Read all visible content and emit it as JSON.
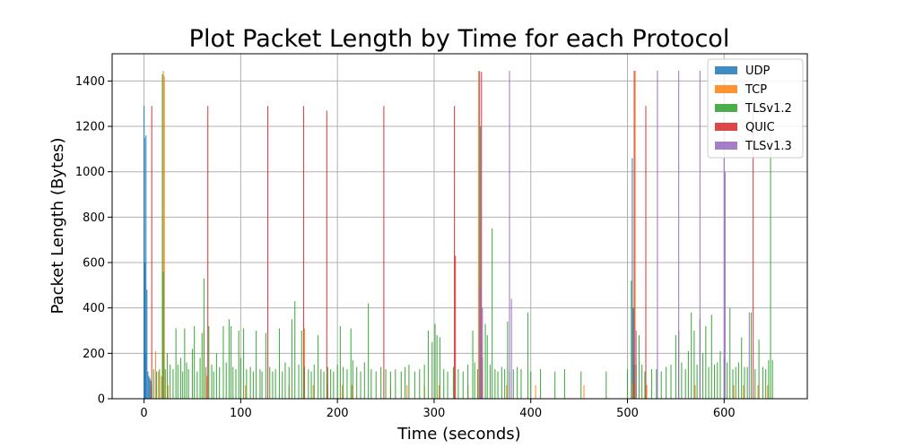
{
  "chart_data": {
    "type": "bar",
    "title": "Plot Packet Length by Time for each Protocol",
    "xlabel": "Time (seconds)",
    "ylabel": "Packet Length (Bytes)",
    "xlim": [
      -33,
      686
    ],
    "ylim": [
      0,
      1520
    ],
    "xticks": [
      0,
      100,
      200,
      300,
      400,
      500,
      600
    ],
    "yticks": [
      0,
      200,
      400,
      600,
      800,
      1000,
      1200,
      1400
    ],
    "grid": true,
    "legend_position": "top-right",
    "series": [
      {
        "name": "UDP",
        "color": "#1f77b4",
        "points": [
          [
            0,
            1290
          ],
          [
            0.5,
            1150
          ],
          [
            1,
            600
          ],
          [
            1.5,
            200
          ],
          [
            2,
            1160
          ],
          [
            3,
            480
          ],
          [
            4,
            120
          ],
          [
            5,
            100
          ],
          [
            6,
            90
          ],
          [
            7,
            80
          ],
          [
            505,
            1060
          ],
          [
            506,
            400
          ],
          [
            507,
            150
          ]
        ]
      },
      {
        "name": "TCP",
        "color": "#ff7f0e",
        "points": [
          [
            8,
            60
          ],
          [
            12,
            210
          ],
          [
            15,
            120
          ],
          [
            18,
            100
          ],
          [
            20,
            1445
          ],
          [
            21,
            1420
          ],
          [
            25,
            60
          ],
          [
            62,
            300
          ],
          [
            65,
            100
          ],
          [
            105,
            60
          ],
          [
            150,
            60
          ],
          [
            166,
            310
          ],
          [
            175,
            60
          ],
          [
            190,
            60
          ],
          [
            205,
            60
          ],
          [
            215,
            60
          ],
          [
            255,
            60
          ],
          [
            272,
            60
          ],
          [
            290,
            60
          ],
          [
            305,
            60
          ],
          [
            335,
            60
          ],
          [
            346,
            1445
          ],
          [
            347,
            1445
          ],
          [
            350,
            120
          ],
          [
            375,
            60
          ],
          [
            405,
            60
          ],
          [
            455,
            60
          ],
          [
            505,
            70
          ],
          [
            508,
            1445
          ],
          [
            520,
            60
          ],
          [
            570,
            60
          ],
          [
            610,
            60
          ],
          [
            620,
            60
          ],
          [
            635,
            60
          ],
          [
            645,
            60
          ]
        ]
      },
      {
        "name": "TLSv1.2",
        "color": "#2ca02c",
        "points": [
          [
            10,
            130
          ],
          [
            13,
            120
          ],
          [
            16,
            130
          ],
          [
            19,
            1430
          ],
          [
            20,
            560
          ],
          [
            22,
            130
          ],
          [
            24,
            200
          ],
          [
            27,
            150
          ],
          [
            30,
            130
          ],
          [
            33,
            310
          ],
          [
            35,
            150
          ],
          [
            38,
            180
          ],
          [
            40,
            120
          ],
          [
            42,
            310
          ],
          [
            44,
            160
          ],
          [
            46,
            130
          ],
          [
            50,
            220
          ],
          [
            52,
            320
          ],
          [
            55,
            120
          ],
          [
            58,
            180
          ],
          [
            60,
            290
          ],
          [
            62,
            530
          ],
          [
            64,
            140
          ],
          [
            67,
            320
          ],
          [
            70,
            150
          ],
          [
            72,
            120
          ],
          [
            75,
            200
          ],
          [
            78,
            140
          ],
          [
            82,
            320
          ],
          [
            85,
            160
          ],
          [
            88,
            350
          ],
          [
            90,
            320
          ],
          [
            92,
            140
          ],
          [
            95,
            130
          ],
          [
            98,
            300
          ],
          [
            100,
            180
          ],
          [
            103,
            310
          ],
          [
            106,
            130
          ],
          [
            110,
            140
          ],
          [
            113,
            120
          ],
          [
            116,
            300
          ],
          [
            120,
            130
          ],
          [
            122,
            120
          ],
          [
            126,
            290
          ],
          [
            130,
            140
          ],
          [
            133,
            120
          ],
          [
            136,
            130
          ],
          [
            140,
            310
          ],
          [
            143,
            120
          ],
          [
            146,
            160
          ],
          [
            150,
            140
          ],
          [
            153,
            350
          ],
          [
            156,
            430
          ],
          [
            160,
            150
          ],
          [
            163,
            300
          ],
          [
            166,
            140
          ],
          [
            170,
            130
          ],
          [
            173,
            120
          ],
          [
            176,
            150
          ],
          [
            180,
            280
          ],
          [
            183,
            130
          ],
          [
            186,
            120
          ],
          [
            190,
            140
          ],
          [
            193,
            130
          ],
          [
            196,
            120
          ],
          [
            200,
            150
          ],
          [
            203,
            320
          ],
          [
            206,
            140
          ],
          [
            210,
            130
          ],
          [
            214,
            310
          ],
          [
            216,
            170
          ],
          [
            220,
            140
          ],
          [
            224,
            120
          ],
          [
            228,
            160
          ],
          [
            232,
            420
          ],
          [
            235,
            130
          ],
          [
            240,
            120
          ],
          [
            245,
            140
          ],
          [
            250,
            130
          ],
          [
            255,
            120
          ],
          [
            260,
            130
          ],
          [
            266,
            120
          ],
          [
            270,
            140
          ],
          [
            274,
            150
          ],
          [
            280,
            120
          ],
          [
            285,
            130
          ],
          [
            290,
            150
          ],
          [
            294,
            300
          ],
          [
            298,
            250
          ],
          [
            301,
            330
          ],
          [
            303,
            280
          ],
          [
            306,
            270
          ],
          [
            310,
            130
          ],
          [
            314,
            120
          ],
          [
            320,
            140
          ],
          [
            325,
            130
          ],
          [
            330,
            120
          ],
          [
            335,
            150
          ],
          [
            340,
            300
          ],
          [
            342,
            160
          ],
          [
            345,
            130
          ],
          [
            348,
            1200
          ],
          [
            350,
            180
          ],
          [
            353,
            330
          ],
          [
            355,
            280
          ],
          [
            358,
            150
          ],
          [
            360,
            750
          ],
          [
            363,
            130
          ],
          [
            366,
            120
          ],
          [
            370,
            140
          ],
          [
            373,
            130
          ],
          [
            376,
            340
          ],
          [
            378,
            120
          ],
          [
            382,
            130
          ],
          [
            386,
            140
          ],
          [
            390,
            130
          ],
          [
            397,
            380
          ],
          [
            400,
            120
          ],
          [
            410,
            130
          ],
          [
            425,
            120
          ],
          [
            435,
            130
          ],
          [
            452,
            120
          ],
          [
            478,
            120
          ],
          [
            500,
            130
          ],
          [
            504,
            520
          ],
          [
            507,
            140
          ],
          [
            509,
            150
          ],
          [
            512,
            280
          ],
          [
            515,
            150
          ],
          [
            518,
            120
          ],
          [
            525,
            130
          ],
          [
            530,
            130
          ],
          [
            535,
            120
          ],
          [
            540,
            140
          ],
          [
            545,
            150
          ],
          [
            550,
            280
          ],
          [
            553,
            300
          ],
          [
            556,
            160
          ],
          [
            560,
            130
          ],
          [
            563,
            210
          ],
          [
            566,
            380
          ],
          [
            569,
            300
          ],
          [
            572,
            150
          ],
          [
            575,
            350
          ],
          [
            578,
            200
          ],
          [
            581,
            320
          ],
          [
            584,
            140
          ],
          [
            587,
            370
          ],
          [
            590,
            150
          ],
          [
            593,
            160
          ],
          [
            596,
            210
          ],
          [
            600,
            180
          ],
          [
            603,
            160
          ],
          [
            606,
            400
          ],
          [
            609,
            130
          ],
          [
            612,
            140
          ],
          [
            615,
            160
          ],
          [
            618,
            270
          ],
          [
            621,
            140
          ],
          [
            624,
            140
          ],
          [
            628,
            380
          ],
          [
            632,
            130
          ],
          [
            636,
            260
          ],
          [
            640,
            140
          ],
          [
            643,
            130
          ],
          [
            646,
            170
          ],
          [
            648,
            1200
          ],
          [
            650,
            170
          ]
        ]
      },
      {
        "name": "QUIC",
        "color": "#d62728",
        "points": [
          [
            8,
            1290
          ],
          [
            66,
            1290
          ],
          [
            128,
            1290
          ],
          [
            165,
            1290
          ],
          [
            189,
            1270
          ],
          [
            248,
            1290
          ],
          [
            321,
            1290
          ],
          [
            322,
            630
          ],
          [
            349,
            1440
          ],
          [
            507,
            1445
          ],
          [
            519,
            1290
          ],
          [
            630,
            1290
          ]
        ]
      },
      {
        "name": "TLSv1.3",
        "color": "#9467bd",
        "points": [
          [
            347,
            1440
          ],
          [
            348,
            500
          ],
          [
            350,
            400
          ],
          [
            378,
            1445
          ],
          [
            380,
            440
          ],
          [
            509,
            300
          ],
          [
            531,
            1445
          ],
          [
            553,
            1445
          ],
          [
            575,
            1445
          ],
          [
            600,
            1445
          ],
          [
            601,
            1000
          ],
          [
            626,
            380
          ]
        ]
      }
    ]
  }
}
